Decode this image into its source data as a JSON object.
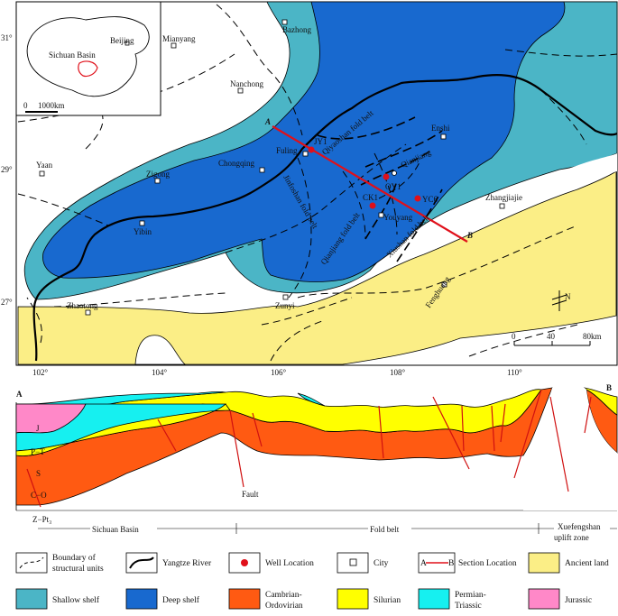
{
  "colors": {
    "shallow": "#4bb5c6",
    "deep": "#1869cf",
    "cambrian": "#ff5a12",
    "silurian": "#ffff00",
    "permian": "#16f0f0",
    "jurassic": "#ff88c8",
    "ancient": "#fbee86",
    "section": "#e0101a",
    "well": "#e0101a"
  },
  "map": {
    "lat_ticks": [
      "31°",
      "29°",
      "27°"
    ],
    "lon_ticks": [
      "102°",
      "104°",
      "106°",
      "108°",
      "110°"
    ],
    "cities": [
      "Bazhong",
      "Mianyang",
      "Nanchong",
      "Fuling",
      "Chongqing",
      "Zigong",
      "Yaan",
      "Yibin",
      "Zhaotong",
      "Zunyi",
      "Youyang",
      "Enshi",
      "Zhangjiajie",
      "Fenghuang",
      "Qianjiang"
    ],
    "wells": [
      "JY1",
      "QY1",
      "CK1",
      "YC6"
    ],
    "section_ends": [
      "A",
      "B"
    ],
    "fold_belts": [
      "Qiyaoshan fold belt",
      "Jinfoshan fold belt",
      "Qianjiang fold belt",
      "Xiushan fold belt"
    ],
    "inset": {
      "beijing": "Beijing",
      "basin": "Sichuan Basin",
      "scale": "1000km",
      "scale_zero": "0"
    },
    "scale": {
      "zero": "0",
      "mid": "40",
      "end": "80km"
    },
    "north": "N"
  },
  "section": {
    "end_a": "A",
    "end_b": "B",
    "layers": [
      "J",
      "P−T",
      "S",
      "C−O",
      "Z−Pt₃"
    ],
    "fault": "Fault",
    "zones": [
      "Sichuan Basin",
      "Fold belt",
      "Xuefengshan",
      "uplift zone"
    ]
  },
  "legend": [
    {
      "label": "Boundary of"
    },
    {
      "label": "structural units"
    },
    {
      "label": "Yangtze River"
    },
    {
      "label": "Well Location"
    },
    {
      "label": "City"
    },
    {
      "label": "Section Location"
    },
    {
      "label": "Ancient land"
    },
    {
      "label": "Shallow shelf"
    },
    {
      "label": "Deep shelf"
    },
    {
      "label": "Cambrian-"
    },
    {
      "label": "Ordovirian"
    },
    {
      "label": "Silurian"
    },
    {
      "label": "Permian-"
    },
    {
      "label": "Triassic"
    },
    {
      "label": "Jurassic"
    },
    {
      "label": "A"
    },
    {
      "label": "B"
    }
  ]
}
